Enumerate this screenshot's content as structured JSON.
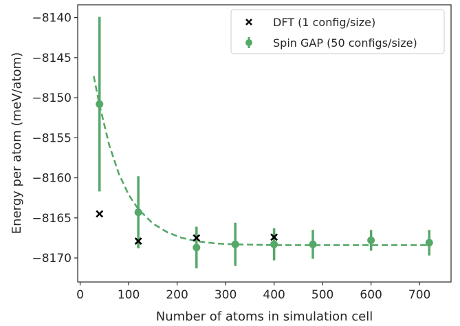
{
  "chart_data": {
    "type": "scatter",
    "xlabel": "Number of atoms in simulation cell",
    "ylabel": "Energy per atom (meV/atom)",
    "xlim": [
      -5,
      765
    ],
    "ylim": [
      -8173.0,
      -8138.4
    ],
    "xticks": [
      0,
      100,
      200,
      300,
      400,
      500,
      600,
      700
    ],
    "yticks": [
      -8170,
      -8165,
      -8160,
      -8155,
      -8150,
      -8145,
      -8140
    ],
    "grid": false,
    "legend_position": "top-right",
    "legend": {
      "dft_label": "DFT (1 config/size)",
      "gap_label": "Spin GAP (50 configs/size)"
    },
    "series": [
      {
        "name": "DFT (1 config/size)",
        "marker": "x",
        "color": "#000000",
        "x": [
          40,
          120,
          240,
          400
        ],
        "y": [
          -8164.5,
          -8167.9,
          -8167.5,
          -8167.4
        ]
      },
      {
        "name": "Spin GAP (50 configs/size)",
        "marker": "circle",
        "color": "#55a868",
        "x": [
          40,
          120,
          240,
          320,
          400,
          480,
          600,
          720
        ],
        "y": [
          -8150.8,
          -8164.3,
          -8168.7,
          -8168.3,
          -8168.3,
          -8168.3,
          -8167.8,
          -8168.1
        ],
        "yerr": [
          10.9,
          4.5,
          2.6,
          2.7,
          2.0,
          1.8,
          1.3,
          1.6
        ]
      }
    ],
    "fit": {
      "style": "dashed",
      "color": "#55a868",
      "x": [
        28,
        40,
        60,
        80,
        100,
        120,
        150,
        180,
        210,
        240,
        280,
        320,
        400,
        500,
        600,
        720
      ],
      "y": [
        -8147.3,
        -8150.9,
        -8155.9,
        -8159.5,
        -8162.1,
        -8163.9,
        -8165.7,
        -8166.8,
        -8167.5,
        -8167.9,
        -8168.2,
        -8168.3,
        -8168.4,
        -8168.4,
        -8168.4,
        -8168.4
      ]
    }
  }
}
